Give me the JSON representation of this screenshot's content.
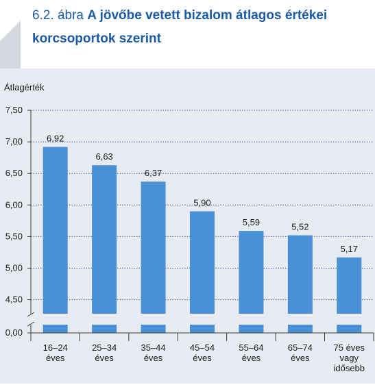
{
  "chart_data": {
    "type": "bar",
    "title_prefix": "6.2. ábra",
    "title": "A jövőbe vetett bizalom átlagos értékei korcsoportok szerint",
    "y_label": "Átlagérték",
    "categories": [
      [
        "16–24",
        "éves"
      ],
      [
        "25–34",
        "éves"
      ],
      [
        "35–44",
        "éves"
      ],
      [
        "45–54",
        "éves"
      ],
      [
        "55–64",
        "éves"
      ],
      [
        "65–74",
        "éves"
      ],
      [
        "75 éves",
        "vagy",
        "idősebb"
      ]
    ],
    "values": [
      6.92,
      6.63,
      6.37,
      5.9,
      5.59,
      5.52,
      5.17
    ],
    "value_labels": [
      "6,92",
      "6,63",
      "6,37",
      "5,90",
      "5,59",
      "5,52",
      "5,17"
    ],
    "color": "#4a90d4",
    "ylim": [
      4.3,
      7.5
    ],
    "axis_break": true,
    "yticks": [
      {
        "value": 0,
        "label": "0,00"
      },
      {
        "value": 4.5,
        "label": "4,50"
      },
      {
        "value": 5,
        "label": "5,00"
      },
      {
        "value": 5.5,
        "label": "5,50"
      },
      {
        "value": 6,
        "label": "6,00"
      },
      {
        "value": 6.5,
        "label": "6,50"
      },
      {
        "value": 7,
        "label": "7,00"
      },
      {
        "value": 7.5,
        "label": "7,50"
      }
    ],
    "grid": true
  }
}
